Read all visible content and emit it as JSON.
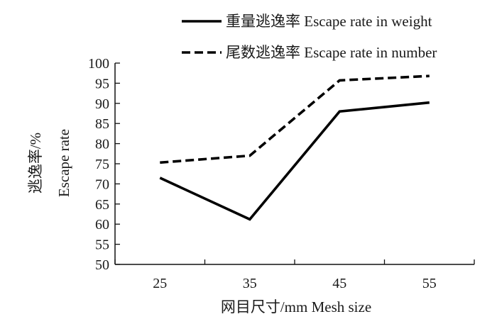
{
  "chart_data": {
    "type": "line",
    "categories": [
      "25",
      "35",
      "45",
      "55"
    ],
    "x": [
      25,
      35,
      45,
      55
    ],
    "series": [
      {
        "name": "重量逃逸率 Escape rate in weight",
        "values": [
          71.5,
          61.2,
          88.0,
          90.2
        ],
        "line_style": "solid",
        "color": "#000000"
      },
      {
        "name": "尾数逃逸率 Escape rate in number",
        "values": [
          75.3,
          77.0,
          95.7,
          96.8
        ],
        "line_style": "dashed",
        "color": "#000000"
      }
    ],
    "xlabel": "网目尺寸/mm Mesh size",
    "ylabel_cn": "逃逸率/%",
    "ylabel_en": "Escape rate",
    "ylim": [
      50,
      100
    ],
    "yticks": [
      50,
      55,
      60,
      65,
      70,
      75,
      80,
      85,
      90,
      95,
      100
    ],
    "grid": false,
    "legend_position": "top-right"
  }
}
